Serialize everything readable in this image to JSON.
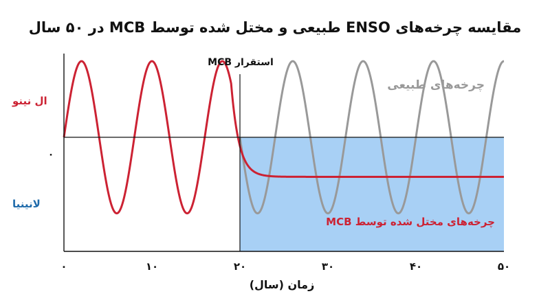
{
  "chart_data": {
    "type": "line",
    "title": "مقایسه چرخه‌های ENSO طبیعی و مختل شده توسط MCB در ۵۰ سال",
    "xlabel": "زمان (سال)",
    "ylabel": "",
    "xlim": [
      0,
      50
    ],
    "ylim": [
      -1.5,
      1.1
    ],
    "x_ticks": [
      0,
      10,
      20,
      30,
      40,
      50
    ],
    "x_tick_labels": [
      "۰",
      "۱۰",
      "۲۰",
      "۳۰",
      "۴۰",
      "۵۰"
    ],
    "y_zero_label": "۰",
    "y_top_label": "ال نینو",
    "y_bottom_label": "لانینیا",
    "event": {
      "x": 20,
      "label": "استقرار MCB"
    },
    "shaded_region": {
      "x_start": 20,
      "x_end": 50,
      "y_start": 0,
      "y_end": -1.5,
      "color": "#a8d0f5"
    },
    "series": [
      {
        "name": "چرخه‌های طبیعی",
        "color": "#999999",
        "formula": "sin(2*pi*x/8)",
        "x_start": 0,
        "x_end": 50,
        "visible_from": 20
      },
      {
        "name": "چرخه‌های مختل شده توسط MCB",
        "color": "#cc2233",
        "formula": "sin(2*pi*x/8) until x=19; then decays to -0.52",
        "x_start": 0,
        "x_end": 50,
        "steady_value": -0.52
      }
    ],
    "grid": false
  }
}
